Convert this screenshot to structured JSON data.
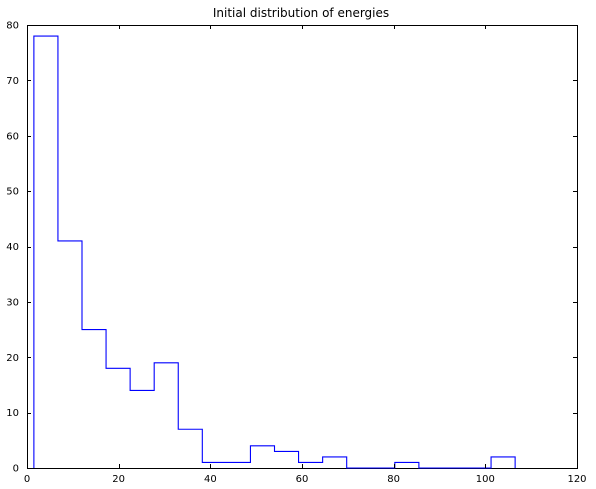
{
  "chart_data": {
    "type": "histogram",
    "title": "Initial distribution of energies",
    "xlabel": "",
    "ylabel": "",
    "xlim": [
      0,
      120
    ],
    "ylim": [
      0,
      80
    ],
    "x_ticks": [
      0,
      20,
      40,
      60,
      80,
      100,
      120
    ],
    "y_ticks": [
      0,
      10,
      20,
      30,
      40,
      50,
      60,
      70,
      80
    ],
    "x_tick_labels": [
      "0",
      "20",
      "40",
      "60",
      "80",
      "100",
      "120"
    ],
    "y_tick_labels": [
      "0",
      "10",
      "20",
      "30",
      "40",
      "50",
      "60",
      "70",
      "80"
    ],
    "grid": false,
    "line_color": "#0000ff",
    "bin_edges": [
      1.5,
      6.75,
      12.0,
      17.25,
      22.5,
      27.75,
      33.0,
      38.25,
      43.5,
      48.75,
      54.0,
      59.25,
      64.5,
      69.75,
      75.0,
      80.25,
      85.5,
      90.75,
      96.0,
      101.25,
      106.5
    ],
    "bin_edges_note": "approximate, read from chart",
    "counts": [
      78,
      41,
      25,
      18,
      14,
      19,
      7,
      1,
      1,
      4,
      3,
      1,
      2,
      0,
      0,
      1,
      0,
      0,
      0,
      2
    ]
  }
}
